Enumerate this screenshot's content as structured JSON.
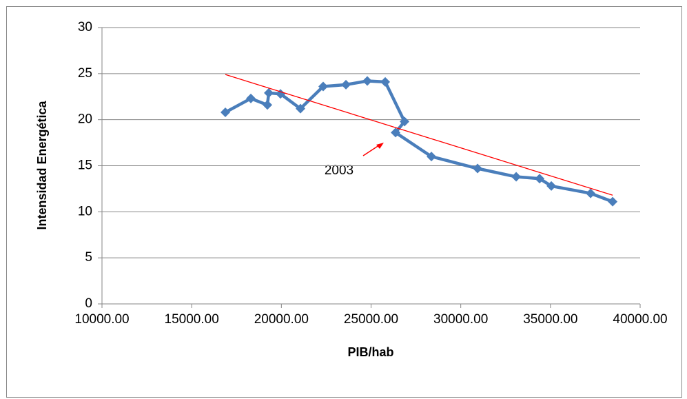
{
  "chart_data": {
    "type": "line",
    "x_label": "PIB/hab",
    "y_label": "Intensidad Energética",
    "xlim": [
      10000,
      40000
    ],
    "xticks": [
      {
        "value": 10000,
        "label": "10000.00"
      },
      {
        "value": 15000,
        "label": "15000.00"
      },
      {
        "value": 20000,
        "label": "20000.00"
      },
      {
        "value": 25000,
        "label": "25000.00"
      },
      {
        "value": 30000,
        "label": "30000.00"
      },
      {
        "value": 35000,
        "label": "35000.00"
      },
      {
        "value": 40000,
        "label": "40000.00"
      }
    ],
    "ylim": [
      0,
      30
    ],
    "yticks": [
      0,
      5,
      10,
      15,
      20,
      25,
      30
    ],
    "grid": true,
    "series": [
      {
        "color": "#4a7ebb",
        "x": [
          16877,
          18298,
          19220,
          19297,
          19950,
          21064,
          22330,
          23600,
          24790,
          25790,
          26865,
          26366,
          28363,
          30937,
          33090,
          34395,
          35048,
          37238,
          38467
        ],
        "values": [
          20.8,
          22.3,
          21.6,
          22.9,
          22.8,
          21.2,
          23.6,
          23.8,
          24.2,
          24.1,
          19.8,
          18.6,
          16.0,
          14.7,
          13.8,
          13.6,
          12.8,
          12.0,
          11.1
        ]
      }
    ],
    "trendline": {
      "color": "#ff0000",
      "x": [
        16877,
        38467
      ],
      "values": [
        24.9,
        11.8
      ]
    },
    "annotation": "2003"
  }
}
